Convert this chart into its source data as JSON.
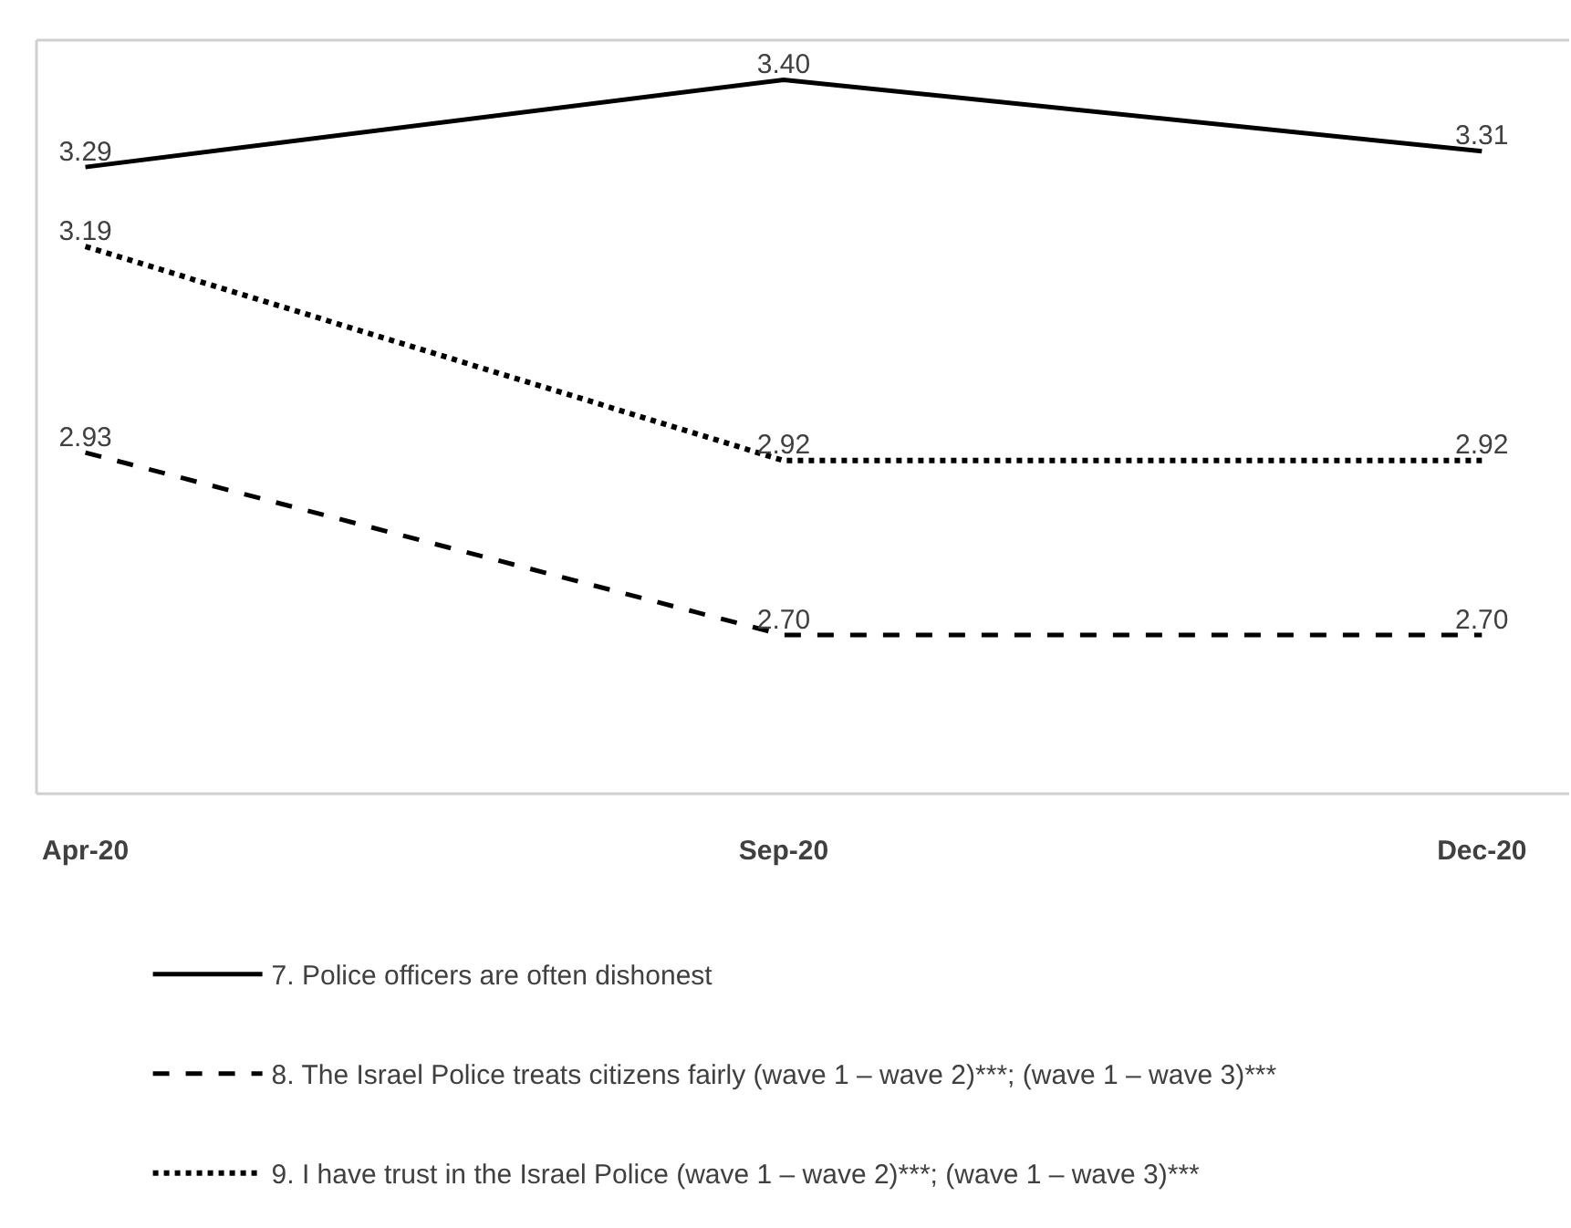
{
  "chart_data": {
    "type": "line",
    "categories": [
      "Apr-20",
      "Sep-20",
      "Dec-20"
    ],
    "ylim": [
      2.5,
      3.45
    ],
    "tick_labels": "x",
    "legend": "bottom",
    "marker": "none",
    "series": [
      {
        "name": "7. Police officers are often dishonest",
        "color": "#000000",
        "line_style": "solid",
        "values": [
          3.29,
          3.4,
          3.31
        ],
        "value_labels": [
          "3.29",
          "3.40",
          "3.31"
        ]
      },
      {
        "name": "8. The Israel Police treats citizens fairly (wave 1 – wave 2)***; (wave 1 – wave 3)***",
        "color": "#000000",
        "line_style": "dashed",
        "values": [
          2.93,
          2.7,
          2.7
        ],
        "value_labels": [
          "2.93",
          "2.70",
          "2.70"
        ]
      },
      {
        "name": "9. I have trust in the Israel Police (wave 1 – wave 2)***; (wave 1 – wave 3)***",
        "color": "#000000",
        "line_style": "dotted",
        "values": [
          3.19,
          2.92,
          2.92
        ],
        "value_labels": [
          "3.19",
          "2.92",
          "2.92"
        ]
      }
    ]
  }
}
